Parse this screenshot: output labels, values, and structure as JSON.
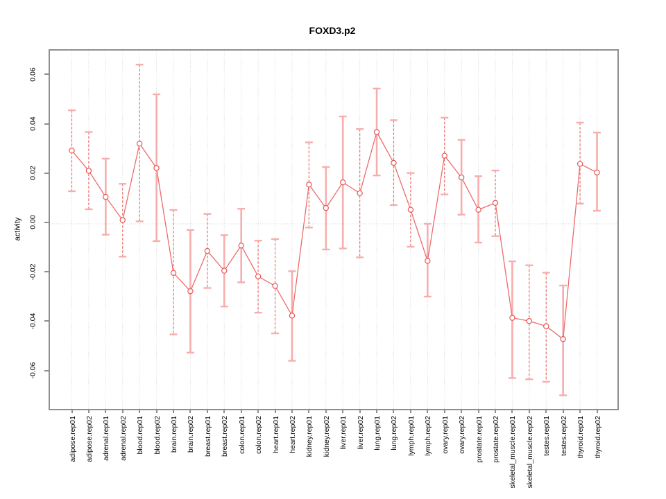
{
  "title": "FOXD3.p2",
  "y_axis": {
    "label": "activity",
    "tick_labels": [
      "0.06",
      "0.04",
      "0.02",
      "0.00",
      "-0.02",
      "-0.04",
      "-0.06"
    ],
    "tick_values": [
      0.06,
      0.04,
      0.02,
      0.0,
      -0.02,
      -0.04,
      -0.06
    ]
  },
  "colors": {
    "series_line": "#ee6a6a",
    "point_stroke": "#e65555",
    "point_fill": "#ffffff",
    "errorbar_solid": "#f7adad",
    "errorbar_dashed": "#ef6b6b",
    "errorbar_cap": "#f7adad",
    "gridline": "#d9d9d9",
    "axis": "#8f8f8f",
    "text": "#000000"
  },
  "chart_data": {
    "type": "line",
    "title": "FOXD3.p2",
    "xlabel": "",
    "ylabel": "activity",
    "ylim": [
      -0.075,
      0.0702
    ],
    "yticks": [
      -0.06,
      -0.04,
      -0.02,
      0.0,
      0.02,
      0.04,
      0.06
    ],
    "grid": "vertical dotted gridline at every category; horizontal dotted line at y=0; no legend",
    "marker": "open-circle",
    "error_bars": true,
    "categories": [
      "adipose.rep01",
      "adipose.rep02",
      "adrenal.rep01",
      "adrenal.rep02",
      "blood.rep01",
      "blood.rep02",
      "brain.rep01",
      "brain.rep02",
      "breast.rep01",
      "breast.rep02",
      "colon.rep01",
      "colon.rep02",
      "heart.rep01",
      "heart.rep02",
      "kidney.rep01",
      "kidney.rep02",
      "liver.rep01",
      "liver.rep02",
      "lung.rep01",
      "lung.rep02",
      "lymph.rep01",
      "lymph.rep02",
      "ovary.rep01",
      "ovary.rep02",
      "prostate.rep01",
      "prostate.rep02",
      "skeletal_muscle.rep01",
      "skeletal_muscle.rep02",
      "testes.rep01",
      "testes.rep02",
      "thyroid.rep01",
      "thyroid.rep02"
    ],
    "series": [
      {
        "name": "activity",
        "values": [
          0.0297,
          0.0215,
          0.0109,
          0.0015,
          0.0325,
          0.0226,
          -0.0199,
          -0.0273,
          -0.011,
          -0.019,
          -0.0088,
          -0.0213,
          -0.0252,
          -0.0372,
          0.0159,
          0.0064,
          0.0168,
          0.0124,
          0.0372,
          0.0247,
          0.0057,
          -0.015,
          0.0276,
          0.0188,
          0.0057,
          0.0085,
          -0.0381,
          -0.0394,
          -0.0415,
          -0.0467,
          0.0243,
          0.0208
        ],
        "ci_low": [
          0.0132,
          0.0059,
          -0.0044,
          -0.0133,
          0.001,
          -0.007,
          -0.0448,
          -0.0522,
          -0.026,
          -0.0335,
          -0.0237,
          -0.036,
          -0.0444,
          -0.0555,
          -0.0015,
          -0.0104,
          -0.01,
          -0.0136,
          0.0196,
          0.0076,
          -0.0093,
          -0.0295,
          0.0119,
          0.0037,
          -0.0076,
          -0.005,
          -0.0625,
          -0.063,
          -0.064,
          -0.0695,
          0.0082,
          0.0053
        ],
        "ci_high": [
          0.046,
          0.0372,
          0.0264,
          0.0162,
          0.0645,
          0.0525,
          0.0056,
          -0.0025,
          0.004,
          -0.0046,
          0.0061,
          -0.0068,
          -0.0062,
          -0.0192,
          0.033,
          0.023,
          0.0435,
          0.0384,
          0.0548,
          0.042,
          0.0206,
          0.0,
          0.043,
          0.034,
          0.0193,
          0.0216,
          -0.0152,
          -0.0168,
          -0.0198,
          -0.025,
          0.041,
          0.037
        ],
        "bar_style": [
          "dashed",
          "dashed",
          "solid",
          "dashed",
          "dashed",
          "solid",
          "dashed",
          "solid",
          "dashed",
          "solid",
          "solid",
          "dashed",
          "dashed",
          "solid",
          "dashed",
          "solid",
          "solid",
          "dashed",
          "solid",
          "dashed",
          "dashed",
          "solid",
          "dashed",
          "solid",
          "solid",
          "dashed",
          "solid",
          "dashed",
          "dashed",
          "solid",
          "dashed",
          "solid"
        ]
      }
    ]
  }
}
